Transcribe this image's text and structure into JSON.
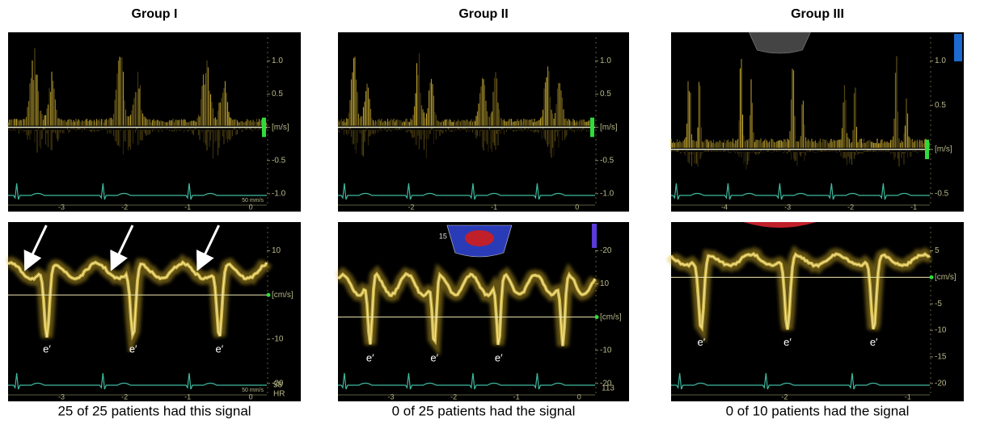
{
  "groups": [
    {
      "title": "Group I",
      "caption": "25 of 25 patients had this signal",
      "top": {
        "scale": [
          "1.0",
          "0.5",
          "[m/s]",
          "-0.5",
          "-1.0"
        ],
        "time": [
          "-3",
          "-2",
          "-1",
          "0"
        ],
        "speed": "50 mm/s"
      },
      "bottom": {
        "scale": [
          "10",
          "[cm/s]",
          "-10",
          "-20"
        ],
        "time": [
          "-3",
          "-2",
          "-1",
          "0"
        ],
        "speed": "50 mm/s",
        "extra": [
          "58",
          "HR"
        ],
        "e_labels": [
          "e′",
          "e′",
          "e′"
        ]
      }
    },
    {
      "title": "Group II",
      "caption": "0 of 25 patients had the signal",
      "top": {
        "scale": [
          "1.0",
          "0.5",
          "[m/s]",
          "-0.5",
          "-1.0"
        ],
        "time": [
          "-2",
          "-1",
          "0"
        ]
      },
      "bottom": {
        "scale": [
          "-20",
          "10",
          "[cm/s]",
          "-10",
          "-20"
        ],
        "time": [
          "-3",
          "-2",
          "-1",
          "0"
        ],
        "extra": [
          "113"
        ],
        "inset": "15",
        "e_labels": [
          "e′",
          "e′",
          "e′"
        ]
      }
    },
    {
      "title": "Group III",
      "caption": "0 of 10 patients had the signal",
      "top": {
        "scale": [
          "1.0",
          "0.5",
          "[m/s]",
          "-0.5"
        ],
        "time": [
          "-4",
          "-3",
          "-2",
          "-1"
        ]
      },
      "bottom": {
        "scale": [
          "5",
          "[cm/s]",
          "-5",
          "-10",
          "-15",
          "-20"
        ],
        "time": [
          "-2",
          "-1"
        ],
        "e_labels": [
          "e′",
          "e′",
          "e′"
        ]
      }
    }
  ]
}
